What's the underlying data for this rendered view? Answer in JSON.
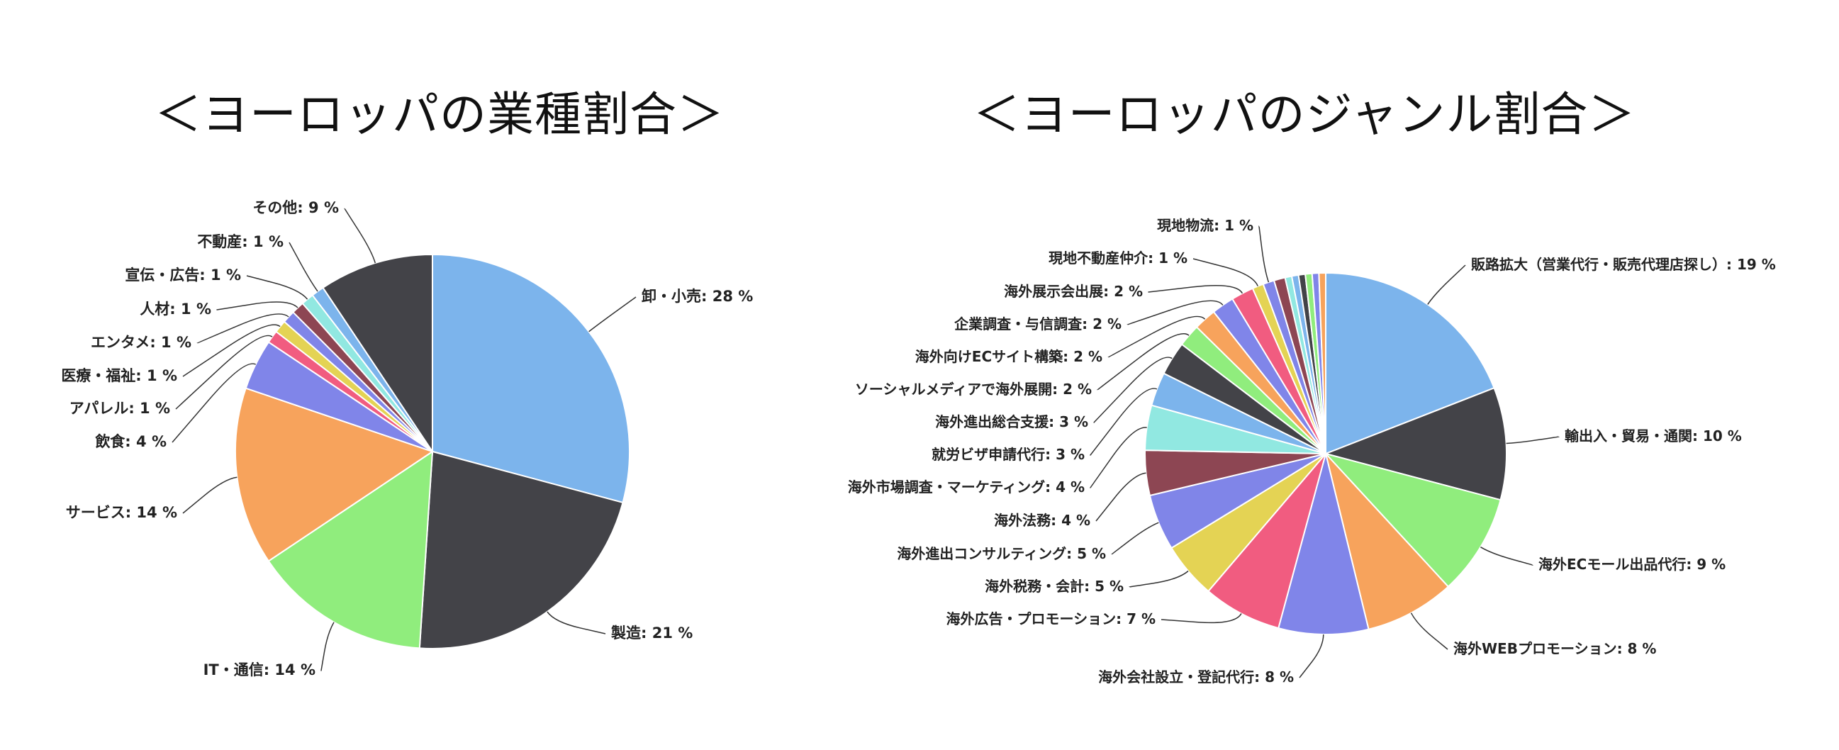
{
  "chart_data": [
    {
      "type": "pie",
      "title": "＜ヨーロッパの業種割合＞",
      "slices": [
        {
          "label": "卸・小売",
          "value": 28,
          "color": "#7cb4ec"
        },
        {
          "label": "製造",
          "value": 21,
          "color": "#434348"
        },
        {
          "label": "IT・通信",
          "value": 14,
          "color": "#90ed7d"
        },
        {
          "label": "サービス",
          "value": 14,
          "color": "#f7a35c"
        },
        {
          "label": "飲食",
          "value": 4,
          "color": "#8085e9"
        },
        {
          "label": "アパレル",
          "value": 1,
          "color": "#f15c80"
        },
        {
          "label": "医療・福祉",
          "value": 1,
          "color": "#e4d354"
        },
        {
          "label": "エンタメ",
          "value": 1,
          "color": "#8085e8"
        },
        {
          "label": "人材",
          "value": 1,
          "color": "#8d4653"
        },
        {
          "label": "宣伝・広告",
          "value": 1,
          "color": "#91e8e1"
        },
        {
          "label": "不動産",
          "value": 1,
          "color": "#7cb4ec"
        },
        {
          "label": "その他",
          "value": 9,
          "color": "#434348"
        }
      ],
      "label_suffix": " %"
    },
    {
      "type": "pie",
      "title": "＜ヨーロッパのジャンル割合＞",
      "slices": [
        {
          "label": "販路拡大（営業代行・販売代理店探し）",
          "value": 19,
          "color": "#7cb4ec"
        },
        {
          "label": "輸出入・貿易・通関",
          "value": 10,
          "color": "#434348"
        },
        {
          "label": "海外ECモール出品代行",
          "value": 9,
          "color": "#90ed7d"
        },
        {
          "label": "海外WEBプロモーション",
          "value": 8,
          "color": "#f7a35c"
        },
        {
          "label": "海外会社設立・登記代行",
          "value": 8,
          "color": "#8085e9"
        },
        {
          "label": "海外広告・プロモーション",
          "value": 7,
          "color": "#f15c80"
        },
        {
          "label": "海外税務・会計",
          "value": 5,
          "color": "#e4d354"
        },
        {
          "label": "海外進出コンサルティング",
          "value": 5,
          "color": "#8085e8"
        },
        {
          "label": "海外法務",
          "value": 4,
          "color": "#8d4653"
        },
        {
          "label": "海外市場調査・マーケティング",
          "value": 4,
          "color": "#91e8e1"
        },
        {
          "label": "就労ビザ申請代行",
          "value": 3,
          "color": "#7cb4ec"
        },
        {
          "label": "海外進出総合支援",
          "value": 3,
          "color": "#434348"
        },
        {
          "label": "ソーシャルメディアで海外展開",
          "value": 2,
          "color": "#90ed7d"
        },
        {
          "label": "海外向けECサイト構築",
          "value": 2,
          "color": "#f7a35c"
        },
        {
          "label": "企業調査・与信調査",
          "value": 2,
          "color": "#8085e9"
        },
        {
          "label": "海外展示会出展",
          "value": 2,
          "color": "#f15c80"
        },
        {
          "label": "現地不動産仲介",
          "value": 1,
          "color": "#e4d354"
        },
        {
          "label": "現地物流",
          "value": 1,
          "color": "#8085e8"
        },
        {
          "label": "",
          "value": 1,
          "color": "#8d4653",
          "unlabeled": true
        },
        {
          "label": "",
          "value": 0.6,
          "color": "#91e8e1",
          "unlabeled": true
        },
        {
          "label": "",
          "value": 0.6,
          "color": "#7cb4ec",
          "unlabeled": true
        },
        {
          "label": "",
          "value": 0.6,
          "color": "#434348",
          "unlabeled": true
        },
        {
          "label": "",
          "value": 0.6,
          "color": "#90ed7d",
          "unlabeled": true
        },
        {
          "label": "",
          "value": 0.6,
          "color": "#8085e9",
          "unlabeled": true
        },
        {
          "label": "",
          "value": 0.6,
          "color": "#f7a35c",
          "unlabeled": true
        }
      ],
      "label_suffix": " %"
    }
  ]
}
